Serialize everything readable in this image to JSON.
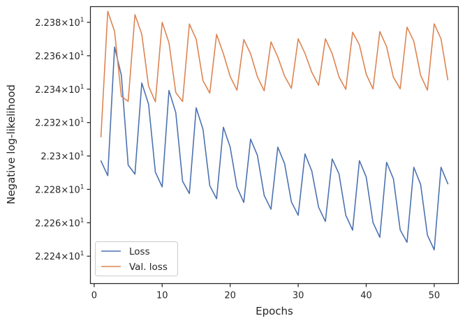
{
  "chart_data": {
    "type": "line",
    "xlabel": "Epochs",
    "ylabel": "Negative log-likelihood",
    "xlim": [
      -0.55,
      53.55
    ],
    "ylim": [
      22.2236,
      22.3894
    ],
    "xticks": [
      0,
      10,
      20,
      30,
      40,
      50
    ],
    "yticks": [
      {
        "value": 22.24,
        "mantissa": "2.224",
        "label": "2.224×10^1"
      },
      {
        "value": 22.26,
        "mantissa": "2.226",
        "label": "2.226×10^1"
      },
      {
        "value": 22.28,
        "mantissa": "2.228",
        "label": "2.228×10^1"
      },
      {
        "value": 22.3,
        "mantissa": "2.23",
        "label": "2.23×10^1"
      },
      {
        "value": 22.32,
        "mantissa": "2.232",
        "label": "2.232×10^1"
      },
      {
        "value": 22.34,
        "mantissa": "2.234",
        "label": "2.234×10^1"
      },
      {
        "value": 22.36,
        "mantissa": "2.236",
        "label": "2.236×10^1"
      },
      {
        "value": 22.38,
        "mantissa": "2.238",
        "label": "2.238×10^1"
      }
    ],
    "grid": false,
    "legend_position": "lower-left",
    "x": [
      1,
      2,
      3,
      4,
      5,
      6,
      7,
      8,
      9,
      10,
      11,
      12,
      13,
      14,
      15,
      16,
      17,
      18,
      19,
      20,
      21,
      22,
      23,
      24,
      25,
      26,
      27,
      28,
      29,
      30,
      31,
      32,
      33,
      34,
      35,
      36,
      37,
      38,
      39,
      40,
      41,
      42,
      43,
      44,
      45,
      46,
      47,
      48,
      49,
      50,
      51,
      52
    ],
    "series": [
      {
        "name": "Loss",
        "color": "#4c72b0",
        "values": [
          22.297,
          22.2882,
          22.3652,
          22.3483,
          22.2946,
          22.2891,
          22.3437,
          22.331,
          22.2903,
          22.2815,
          22.3392,
          22.326,
          22.2849,
          22.2775,
          22.3288,
          22.316,
          22.2822,
          22.2744,
          22.3172,
          22.3053,
          22.2813,
          22.2722,
          22.3101,
          22.3004,
          22.2764,
          22.2681,
          22.3053,
          22.2954,
          22.2725,
          22.2645,
          22.3012,
          22.291,
          22.2693,
          22.2608,
          22.2982,
          22.2893,
          22.2645,
          22.2556,
          22.2972,
          22.2874,
          22.2601,
          22.2513,
          22.2962,
          22.2863,
          22.2557,
          22.2483,
          22.2932,
          22.283,
          22.2526,
          22.2438,
          22.2932,
          22.2834
        ]
      },
      {
        "name": "Val. loss",
        "color": "#dd8452",
        "values": [
          22.3115,
          22.3866,
          22.3746,
          22.3357,
          22.3327,
          22.3846,
          22.3729,
          22.3418,
          22.3324,
          22.38,
          22.3678,
          22.338,
          22.3326,
          22.379,
          22.3699,
          22.3451,
          22.3376,
          22.3728,
          22.3612,
          22.3476,
          22.3394,
          22.3697,
          22.3612,
          22.3474,
          22.339,
          22.3683,
          22.3593,
          22.3478,
          22.3405,
          22.3701,
          22.3614,
          22.3501,
          22.3423,
          22.3701,
          22.3612,
          22.3473,
          22.3399,
          22.3741,
          22.3665,
          22.349,
          22.3401,
          22.3745,
          22.3654,
          22.3471,
          22.3402,
          22.3771,
          22.3687,
          22.3483,
          22.3394,
          22.3791,
          22.3701,
          22.3456
        ]
      }
    ]
  }
}
